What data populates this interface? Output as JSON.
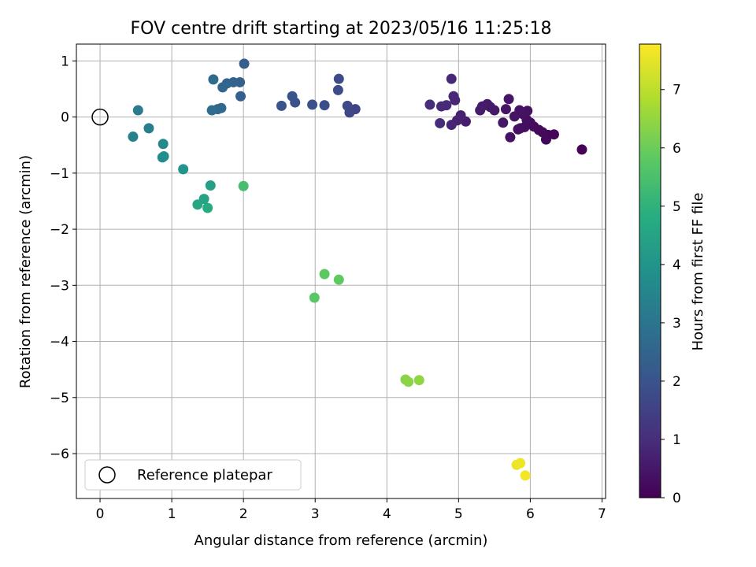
{
  "chart_data": {
    "type": "scatter",
    "title": "FOV centre drift starting at 2023/05/16 11:25:18",
    "xlabel": "Angular distance from reference (arcmin)",
    "ylabel": "Rotation from reference (arcmin)",
    "xlim": [
      -0.33,
      7.05
    ],
    "ylim": [
      -6.8,
      1.3
    ],
    "xticks": [
      0,
      1,
      2,
      3,
      4,
      5,
      6,
      7
    ],
    "yticks": [
      1,
      0,
      -1,
      -2,
      -3,
      -4,
      -5,
      -6
    ],
    "grid": true,
    "colormap": "viridis",
    "colorbar": {
      "label": "Hours from first FF file",
      "range": [
        0,
        7.78
      ],
      "ticks": [
        0,
        1,
        2,
        3,
        4,
        5,
        6,
        7
      ]
    },
    "legend": {
      "position": "bottom-left",
      "entries": [
        "Reference platepar"
      ]
    },
    "reference_point": {
      "x": 0,
      "y": 0
    },
    "points": [
      {
        "x": 6.72,
        "y": -0.58,
        "h": 0.05
      },
      {
        "x": 6.33,
        "y": -0.31,
        "h": 0.1
      },
      {
        "x": 6.25,
        "y": -0.32,
        "h": 0.12
      },
      {
        "x": 6.22,
        "y": -0.4,
        "h": 0.15
      },
      {
        "x": 6.17,
        "y": -0.27,
        "h": 0.18
      },
      {
        "x": 6.12,
        "y": -0.23,
        "h": 0.2
      },
      {
        "x": 6.05,
        "y": -0.17,
        "h": 0.22
      },
      {
        "x": 6.0,
        "y": -0.1,
        "h": 0.25
      },
      {
        "x": 5.95,
        "y": -0.05,
        "h": 0.28
      },
      {
        "x": 5.92,
        "y": -0.18,
        "h": 0.3
      },
      {
        "x": 5.86,
        "y": -0.2,
        "h": 0.32
      },
      {
        "x": 5.83,
        "y": -0.22,
        "h": 0.33
      },
      {
        "x": 5.72,
        "y": -0.36,
        "h": 0.35
      },
      {
        "x": 5.96,
        "y": 0.11,
        "h": 0.37
      },
      {
        "x": 5.9,
        "y": 0.05,
        "h": 0.38
      },
      {
        "x": 5.85,
        "y": 0.12,
        "h": 0.4
      },
      {
        "x": 5.78,
        "y": 0.01,
        "h": 0.42
      },
      {
        "x": 5.7,
        "y": 0.32,
        "h": 0.44
      },
      {
        "x": 5.66,
        "y": 0.14,
        "h": 0.46
      },
      {
        "x": 5.62,
        "y": -0.1,
        "h": 0.48
      },
      {
        "x": 5.5,
        "y": 0.12,
        "h": 0.5
      },
      {
        "x": 5.44,
        "y": 0.18,
        "h": 0.52
      },
      {
        "x": 5.4,
        "y": 0.23,
        "h": 0.55
      },
      {
        "x": 5.33,
        "y": 0.19,
        "h": 0.57
      },
      {
        "x": 5.3,
        "y": 0.12,
        "h": 0.6
      },
      {
        "x": 5.1,
        "y": -0.08,
        "h": 0.65
      },
      {
        "x": 5.03,
        "y": 0.03,
        "h": 0.7
      },
      {
        "x": 4.98,
        "y": -0.06,
        "h": 0.75
      },
      {
        "x": 4.9,
        "y": -0.14,
        "h": 0.8
      },
      {
        "x": 4.95,
        "y": 0.3,
        "h": 0.82
      },
      {
        "x": 4.93,
        "y": 0.37,
        "h": 0.85
      },
      {
        "x": 4.9,
        "y": 0.68,
        "h": 0.88
      },
      {
        "x": 4.83,
        "y": 0.21,
        "h": 0.9
      },
      {
        "x": 4.76,
        "y": 0.19,
        "h": 0.93
      },
      {
        "x": 4.74,
        "y": -0.11,
        "h": 0.95
      },
      {
        "x": 4.6,
        "y": 0.22,
        "h": 1.0
      },
      {
        "x": 3.56,
        "y": 0.14,
        "h": 1.6
      },
      {
        "x": 3.48,
        "y": 0.08,
        "h": 1.65
      },
      {
        "x": 3.45,
        "y": 0.2,
        "h": 1.7
      },
      {
        "x": 3.33,
        "y": 0.68,
        "h": 1.75
      },
      {
        "x": 3.32,
        "y": 0.48,
        "h": 1.78
      },
      {
        "x": 3.13,
        "y": 0.21,
        "h": 1.85
      },
      {
        "x": 2.96,
        "y": 0.22,
        "h": 1.9
      },
      {
        "x": 2.72,
        "y": 0.26,
        "h": 1.95
      },
      {
        "x": 2.68,
        "y": 0.37,
        "h": 2.0
      },
      {
        "x": 2.53,
        "y": 0.2,
        "h": 2.05
      },
      {
        "x": 2.01,
        "y": 0.95,
        "h": 2.3
      },
      {
        "x": 1.96,
        "y": 0.37,
        "h": 2.35
      },
      {
        "x": 1.95,
        "y": 0.62,
        "h": 2.4
      },
      {
        "x": 1.86,
        "y": 0.62,
        "h": 2.45
      },
      {
        "x": 1.77,
        "y": 0.6,
        "h": 2.5
      },
      {
        "x": 1.71,
        "y": 0.53,
        "h": 2.55
      },
      {
        "x": 1.69,
        "y": 0.16,
        "h": 2.6
      },
      {
        "x": 1.64,
        "y": 0.14,
        "h": 2.65
      },
      {
        "x": 1.58,
        "y": 0.67,
        "h": 2.7
      },
      {
        "x": 1.56,
        "y": 0.12,
        "h": 2.75
      },
      {
        "x": 0.53,
        "y": 0.12,
        "h": 3.2
      },
      {
        "x": 0.68,
        "y": -0.2,
        "h": 3.3
      },
      {
        "x": 0.46,
        "y": -0.35,
        "h": 3.4
      },
      {
        "x": 0.88,
        "y": -0.48,
        "h": 3.6
      },
      {
        "x": 0.87,
        "y": -0.72,
        "h": 3.7
      },
      {
        "x": 0.89,
        "y": -0.7,
        "h": 3.75
      },
      {
        "x": 1.16,
        "y": -0.93,
        "h": 4.0
      },
      {
        "x": 1.54,
        "y": -1.22,
        "h": 4.4
      },
      {
        "x": 1.45,
        "y": -1.46,
        "h": 4.5
      },
      {
        "x": 1.36,
        "y": -1.56,
        "h": 4.6
      },
      {
        "x": 1.5,
        "y": -1.62,
        "h": 4.7
      },
      {
        "x": 2.0,
        "y": -1.23,
        "h": 5.4
      },
      {
        "x": 2.99,
        "y": -3.22,
        "h": 5.75
      },
      {
        "x": 3.13,
        "y": -2.8,
        "h": 5.8
      },
      {
        "x": 3.33,
        "y": -2.9,
        "h": 5.85
      },
      {
        "x": 4.26,
        "y": -4.68,
        "h": 6.35
      },
      {
        "x": 4.3,
        "y": -4.72,
        "h": 6.4
      },
      {
        "x": 4.45,
        "y": -4.69,
        "h": 6.45
      },
      {
        "x": 5.81,
        "y": -6.2,
        "h": 7.55
      },
      {
        "x": 5.86,
        "y": -6.17,
        "h": 7.6
      },
      {
        "x": 5.93,
        "y": -6.39,
        "h": 7.65
      }
    ]
  }
}
